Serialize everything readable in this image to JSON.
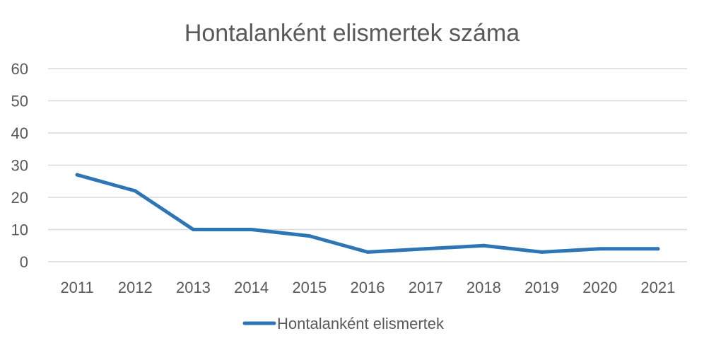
{
  "chart_data": {
    "type": "line",
    "title": "Hontalanként elismertek száma",
    "xlabel": "",
    "ylabel": "",
    "categories": [
      "2011",
      "2012",
      "2013",
      "2014",
      "2015",
      "2016",
      "2017",
      "2018",
      "2019",
      "2020",
      "2021"
    ],
    "series": [
      {
        "name": "Hontalanként elismertek",
        "color": "#2e75b6",
        "values": [
          27,
          22,
          10,
          10,
          8,
          3,
          4,
          5,
          3,
          4,
          4
        ]
      }
    ],
    "ylim": [
      0,
      60
    ],
    "yticks": [
      0,
      10,
      20,
      30,
      40,
      50,
      60
    ],
    "grid": true,
    "legend": "bottom"
  }
}
